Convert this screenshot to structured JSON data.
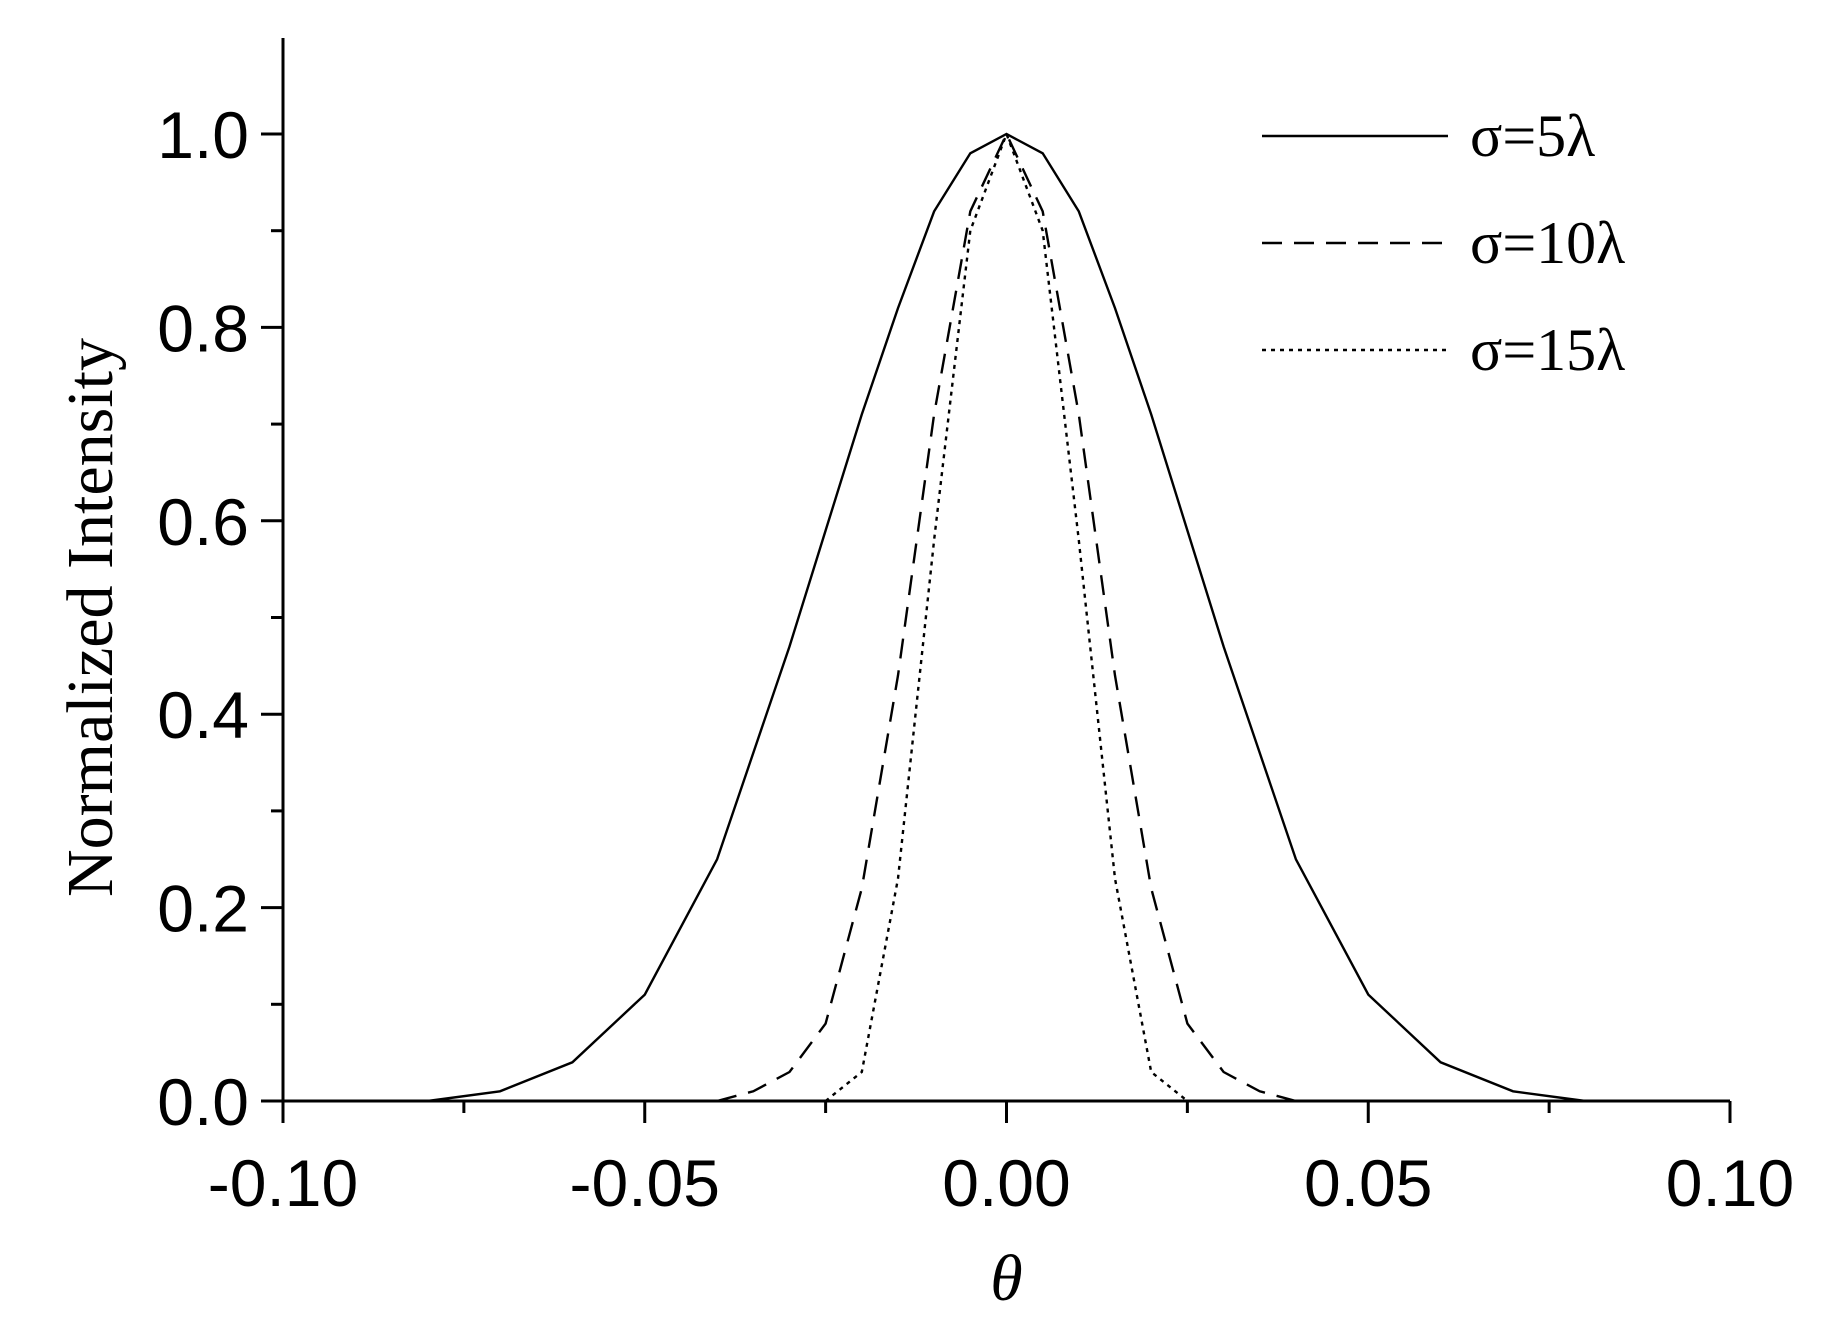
{
  "chart_data": {
    "type": "line",
    "xlabel": "θ",
    "ylabel": "Normalized Intensity",
    "xlim": [
      -0.1,
      0.1
    ],
    "ylim": [
      0.0,
      1.1
    ],
    "x_ticks": [
      -0.1,
      -0.05,
      0.0,
      0.05,
      0.1
    ],
    "x_tick_labels": [
      "-0.10",
      "-0.05",
      "0.00",
      "0.05",
      "0.10"
    ],
    "y_ticks": [
      0.0,
      0.2,
      0.4,
      0.6,
      0.8,
      1.0
    ],
    "y_tick_labels": [
      "0.0",
      "0.2",
      "0.4",
      "0.6",
      "0.8",
      "1.0"
    ],
    "legend_position": "top-right",
    "grid": false,
    "series": [
      {
        "name": "σ=5λ",
        "style": "solid",
        "x": [
          -0.08,
          -0.07,
          -0.06,
          -0.05,
          -0.04,
          -0.03,
          -0.025,
          -0.02,
          -0.015,
          -0.01,
          -0.005,
          0.0,
          0.005,
          0.01,
          0.015,
          0.02,
          0.025,
          0.03,
          0.04,
          0.05,
          0.06,
          0.07,
          0.08
        ],
        "y": [
          0.0,
          0.01,
          0.04,
          0.11,
          0.25,
          0.47,
          0.59,
          0.71,
          0.82,
          0.92,
          0.98,
          1.0,
          0.98,
          0.92,
          0.82,
          0.71,
          0.59,
          0.47,
          0.25,
          0.11,
          0.04,
          0.01,
          0.0
        ]
      },
      {
        "name": "σ=10λ",
        "style": "dashed",
        "x": [
          -0.04,
          -0.035,
          -0.03,
          -0.025,
          -0.02,
          -0.015,
          -0.01,
          -0.005,
          0.0,
          0.005,
          0.01,
          0.015,
          0.02,
          0.025,
          0.03,
          0.035,
          0.04
        ],
        "y": [
          0.0,
          0.01,
          0.03,
          0.08,
          0.22,
          0.44,
          0.71,
          0.92,
          1.0,
          0.92,
          0.71,
          0.44,
          0.22,
          0.08,
          0.03,
          0.01,
          0.0
        ]
      },
      {
        "name": "σ=15λ",
        "style": "dotted",
        "x": [
          -0.025,
          -0.02,
          -0.015,
          -0.01,
          -0.005,
          0.0,
          0.005,
          0.01,
          0.015,
          0.02,
          0.025
        ],
        "y": [
          0.0,
          0.03,
          0.23,
          0.58,
          0.9,
          1.0,
          0.9,
          0.58,
          0.23,
          0.03,
          0.0
        ]
      }
    ]
  }
}
